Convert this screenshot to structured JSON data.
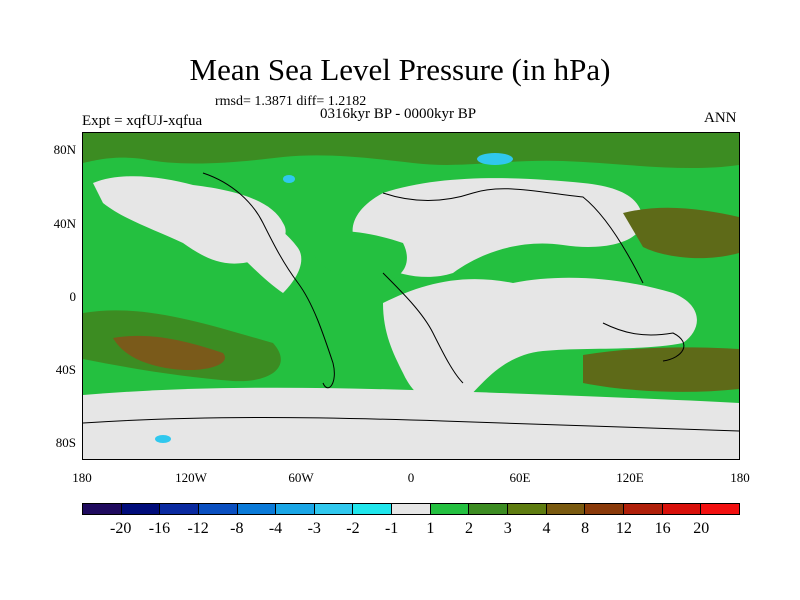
{
  "title": "Mean Sea Level Pressure (in hPa)",
  "stats": "rmsd= 1.3871  diff= 1.2182",
  "period": "0316kyr BP - 0000kyr BP",
  "experiment": "Expt = xqfUJ-xqfua",
  "season": "ANN",
  "y_axis_labels": [
    "80N",
    "40N",
    "0",
    "40S",
    "80S"
  ],
  "x_axis_labels": [
    "180",
    "120W",
    "60W",
    "0",
    "60E",
    "120E",
    "180"
  ],
  "colorbar": {
    "labels": [
      "-20",
      "-16",
      "-12",
      "-8",
      "-4",
      "-3",
      "-2",
      "-1",
      "1",
      "2",
      "3",
      "4",
      "8",
      "12",
      "16",
      "20"
    ],
    "colors": [
      "#1f0a5e",
      "#000c7a",
      "#0a2aa0",
      "#0a4fc0",
      "#0a7ad8",
      "#1aa6e6",
      "#30c8ee",
      "#20e6ec",
      "#e6e6e6",
      "#24c040",
      "#3c8c22",
      "#5e7c10",
      "#7a5a10",
      "#8a3a0a",
      "#b0200a",
      "#d8100a",
      "#f21010"
    ]
  },
  "map_colors": {
    "land_white": "#e6e6e6",
    "green": "#24c040",
    "dark_green": "#3c8c22",
    "olive": "#5e6a18",
    "brown": "#7a5a1a",
    "blue": "#30c8ee"
  }
}
